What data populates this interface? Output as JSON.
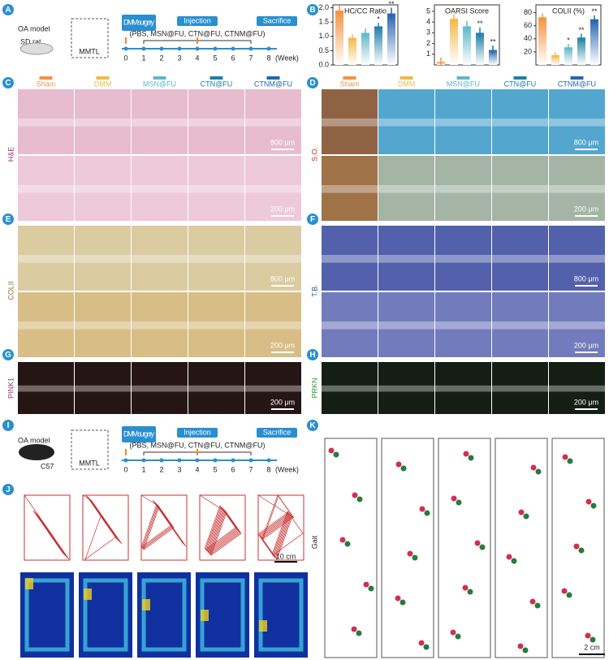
{
  "panels": [
    "A",
    "B",
    "C",
    "D",
    "E",
    "F",
    "G",
    "H",
    "I",
    "J",
    "K"
  ],
  "groups": [
    {
      "name": "Sham",
      "color": "#f5923e"
    },
    {
      "name": "DMM",
      "color": "#f2b84b"
    },
    {
      "name": "MSN@FU",
      "color": "#5fb8c8"
    },
    {
      "name": "CTN@FU",
      "color": "#1f7fa6"
    },
    {
      "name": "CTNM@FU",
      "color": "#2565b0"
    }
  ],
  "timeline_rat": {
    "model": "OA model",
    "animal": "SD rat",
    "tissue": "MMTL",
    "surgery": "DMM surgery",
    "injection": "Injection",
    "sacrifice": "Sacrifice",
    "treatments": "(PBS, MSN@FU, CTN@FU, CTNM@FU)",
    "weeks": [
      0,
      1,
      2,
      3,
      4,
      5,
      6,
      7,
      8
    ],
    "unit": "(Week)"
  },
  "timeline_mouse": {
    "model": "OA model",
    "animal": "C57",
    "tissue": "MMTL",
    "surgery": "DMM surgery",
    "injection": "Injection",
    "sacrifice": "Sacrifice",
    "treatments": "(PBS, MSN@FU, CTN@FU, CTNM@FU)",
    "weeks": [
      0,
      1,
      2,
      3,
      4,
      5,
      6,
      7,
      8
    ],
    "unit": "(Week)"
  },
  "stains": {
    "C": {
      "label": "H&E",
      "scale_top": "800 μm",
      "scale_bottom": "200 μm"
    },
    "D": {
      "label": "S.O.",
      "scale_top": "800 μm",
      "scale_bottom": "200 μm"
    },
    "E": {
      "label": "COLII",
      "scale_top": "800 μm",
      "scale_bottom": "200 μm"
    },
    "F": {
      "label": "T.B.",
      "scale_top": "800 μm",
      "scale_bottom": "200 μm"
    },
    "G": {
      "label": "PINK1",
      "scale_bottom": "200 μm"
    },
    "H": {
      "label": "PRKN",
      "scale_bottom": "200 μm"
    }
  },
  "open_field": {
    "scale": "10 cm"
  },
  "gait": {
    "label": "Gait",
    "scale": "2 cm"
  },
  "chart_data": [
    {
      "type": "bar",
      "title": "HC/CC Ratio",
      "values": [
        1.9,
        0.95,
        1.12,
        1.35,
        1.8
      ],
      "errors": [
        0.2,
        0.12,
        0.15,
        0.12,
        0.2
      ],
      "ylim": [
        0,
        2.1
      ],
      "yticks": [
        {
          "value": 0,
          "label": "0.0"
        },
        {
          "value": 0.5,
          "label": "0.5"
        },
        {
          "value": 1,
          "label": "1.0"
        },
        {
          "value": 1.5,
          "label": "1.5"
        },
        {
          "value": 2,
          "label": "2.0"
        }
      ],
      "significance": {
        "CTN@FU": "*",
        "CTNM@FU": "**"
      }
    },
    {
      "type": "bar",
      "title": "OARSI Score",
      "values": [
        0.3,
        4.3,
        3.6,
        3.0,
        1.4
      ],
      "errors": [
        0.4,
        0.4,
        0.5,
        0.5,
        0.4
      ],
      "ylim": [
        0,
        5.6
      ],
      "yticks": [
        1,
        2,
        3,
        4,
        5
      ],
      "significance": {
        "CTN@FU": "**",
        "CTNM@FU": "**"
      }
    },
    {
      "type": "bar",
      "title": "COLII (%)",
      "values": [
        73,
        15,
        27,
        42,
        70
      ],
      "errors": [
        6,
        4,
        5,
        6,
        6
      ],
      "ylim": [
        0,
        92
      ],
      "yticks": [
        20,
        40,
        60,
        80
      ],
      "significance": {
        "MSN@FU": "*",
        "CTN@FU": "**",
        "CTNM@FU": "**"
      }
    }
  ]
}
